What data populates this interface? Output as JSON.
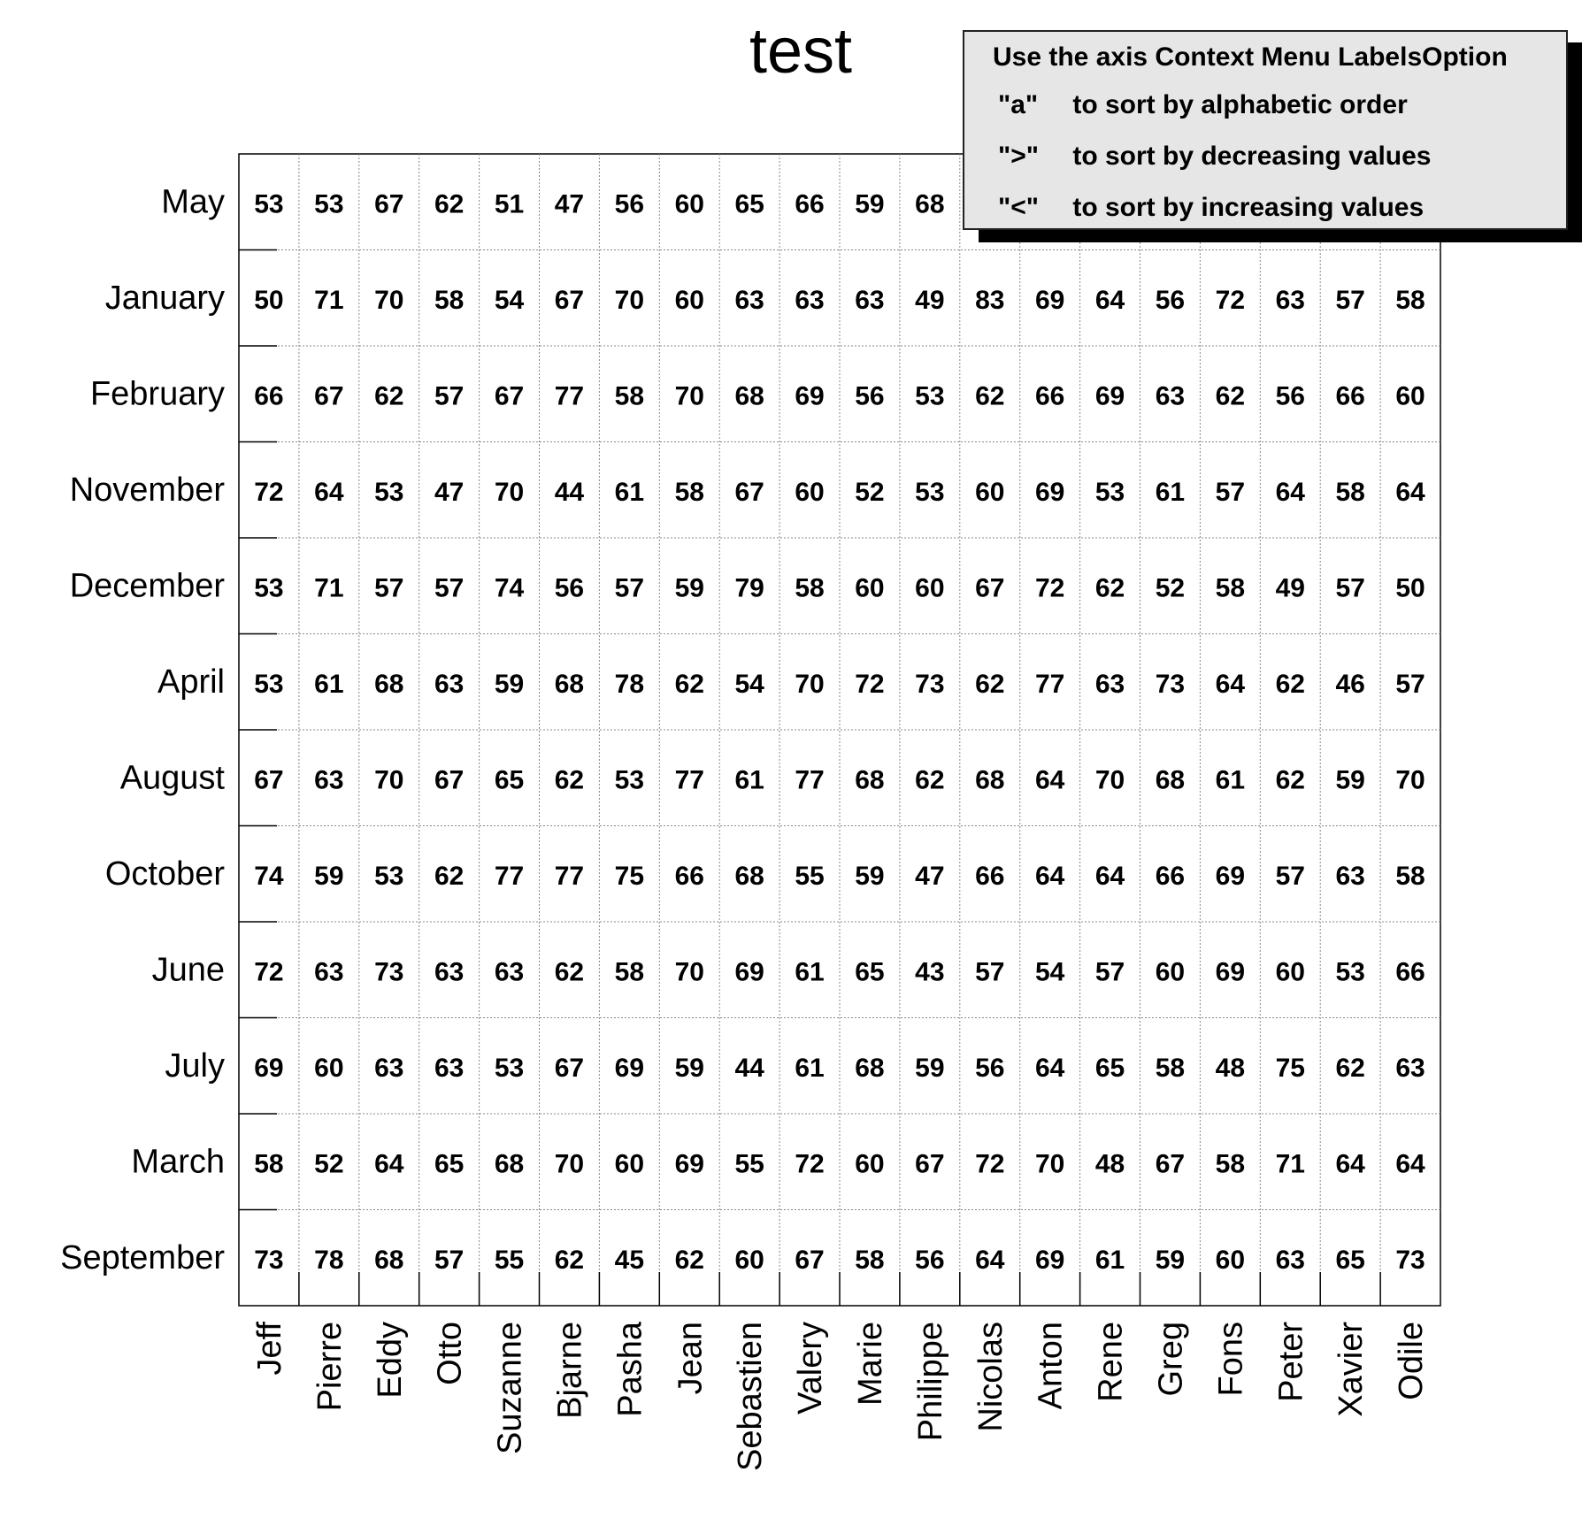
{
  "chart_data": {
    "type": "table",
    "title": "test",
    "rows": [
      "May",
      "January",
      "February",
      "November",
      "December",
      "April",
      "August",
      "October",
      "June",
      "July",
      "March",
      "September"
    ],
    "columns": [
      "Jeff",
      "Pierre",
      "Eddy",
      "Otto",
      "Suzanne",
      "Bjarne",
      "Pasha",
      "Jean",
      "Sebastien",
      "Valery",
      "Marie",
      "Philippe",
      "Nicolas",
      "Anton",
      "Rene",
      "Greg",
      "Fons",
      "Peter",
      "Xavier",
      "Odile"
    ],
    "values": [
      [
        53,
        53,
        67,
        62,
        51,
        47,
        56,
        60,
        65,
        66,
        59,
        68,
        null,
        null,
        null,
        null,
        null,
        null,
        null,
        null
      ],
      [
        50,
        71,
        70,
        58,
        54,
        67,
        70,
        60,
        63,
        63,
        63,
        49,
        83,
        69,
        64,
        56,
        72,
        63,
        57,
        58
      ],
      [
        66,
        67,
        62,
        57,
        67,
        77,
        58,
        70,
        68,
        69,
        56,
        53,
        62,
        66,
        69,
        63,
        62,
        56,
        66,
        60
      ],
      [
        72,
        64,
        53,
        47,
        70,
        44,
        61,
        58,
        67,
        60,
        52,
        53,
        60,
        69,
        53,
        61,
        57,
        64,
        58,
        64
      ],
      [
        53,
        71,
        57,
        57,
        74,
        56,
        57,
        59,
        79,
        58,
        60,
        60,
        67,
        72,
        62,
        52,
        58,
        49,
        57,
        50
      ],
      [
        53,
        61,
        68,
        63,
        59,
        68,
        78,
        62,
        54,
        70,
        72,
        73,
        62,
        77,
        63,
        73,
        64,
        62,
        46,
        57
      ],
      [
        67,
        63,
        70,
        67,
        65,
        62,
        53,
        77,
        61,
        77,
        68,
        62,
        68,
        64,
        70,
        68,
        61,
        62,
        59,
        70
      ],
      [
        74,
        59,
        53,
        62,
        77,
        77,
        75,
        66,
        68,
        55,
        59,
        47,
        66,
        64,
        64,
        66,
        69,
        57,
        63,
        58
      ],
      [
        72,
        63,
        73,
        63,
        63,
        62,
        58,
        70,
        69,
        61,
        65,
        43,
        57,
        54,
        57,
        60,
        69,
        60,
        53,
        66
      ],
      [
        69,
        60,
        63,
        63,
        53,
        67,
        69,
        59,
        44,
        61,
        68,
        59,
        56,
        64,
        65,
        58,
        48,
        75,
        62,
        63
      ],
      [
        58,
        52,
        64,
        65,
        68,
        70,
        60,
        69,
        55,
        72,
        60,
        67,
        72,
        70,
        48,
        67,
        58,
        71,
        64,
        64
      ],
      [
        73,
        78,
        68,
        57,
        55,
        62,
        45,
        62,
        60,
        67,
        58,
        56,
        64,
        69,
        61,
        59,
        60,
        63,
        65,
        73
      ]
    ],
    "grid": true
  },
  "legend_box": {
    "header": "Use the axis Context Menu LabelsOption",
    "lines": [
      {
        "key": "\"a\"",
        "text": "to sort by alphabetic order"
      },
      {
        "key": "\">\"",
        "text": "to sort by decreasing values"
      },
      {
        "key": "\"<\"",
        "text": "to sort by increasing values"
      }
    ]
  }
}
